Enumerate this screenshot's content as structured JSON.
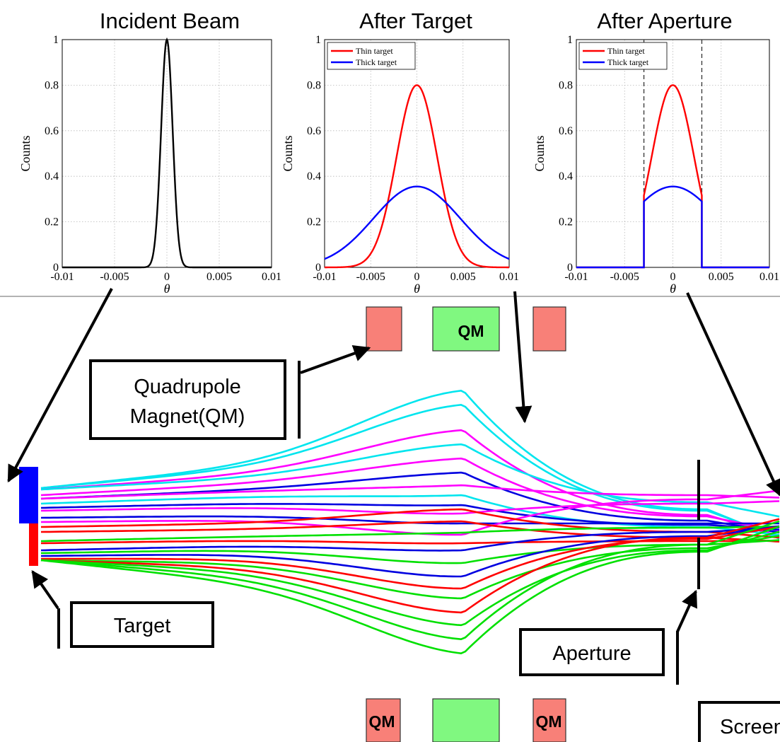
{
  "plots": [
    {
      "id": "incident",
      "title": "Incident Beam",
      "ylabel": "Counts",
      "xlabel": "θ",
      "xticks": [
        "-0.01",
        "-0.005",
        "0",
        "0.005",
        "0.01"
      ],
      "yticks": [
        "0",
        "0.2",
        "0.4",
        "0.6",
        "0.8",
        "1"
      ],
      "legend": [],
      "curves": [
        {
          "color": "#000000",
          "peak": 1.0,
          "sigma": 0.00055,
          "cutoff": null
        }
      ],
      "aperture_lines": []
    },
    {
      "id": "after-target",
      "title": "After Target",
      "ylabel": "Counts",
      "xlabel": "θ",
      "xticks": [
        "-0.01",
        "-0.005",
        "0",
        "0.005",
        "0.01"
      ],
      "yticks": [
        "0",
        "0.2",
        "0.4",
        "0.6",
        "0.8",
        "1"
      ],
      "legend": [
        {
          "label": "Thin target",
          "color": "#ff0000"
        },
        {
          "label": "Thick target",
          "color": "#0000ff"
        }
      ],
      "curves": [
        {
          "color": "#ff0000",
          "peak": 0.8,
          "sigma": 0.0022,
          "cutoff": null
        },
        {
          "color": "#0000ff",
          "peak": 0.355,
          "sigma": 0.0047,
          "cutoff": null
        }
      ],
      "aperture_lines": []
    },
    {
      "id": "after-aperture",
      "title": "After Aperture",
      "ylabel": "Counts",
      "xlabel": "θ",
      "xticks": [
        "-0.01",
        "-0.005",
        "0",
        "0.005",
        "0.01"
      ],
      "yticks": [
        "0",
        "0.2",
        "0.4",
        "0.6",
        "0.8",
        "1"
      ],
      "legend": [
        {
          "label": "Thin target",
          "color": "#ff0000"
        },
        {
          "label": "Thick target",
          "color": "#0000ff"
        }
      ],
      "curves": [
        {
          "color": "#ff0000",
          "peak": 0.8,
          "sigma": 0.0022,
          "cutoff": 0.003
        },
        {
          "color": "#0000ff",
          "peak": 0.355,
          "sigma": 0.0047,
          "cutoff": 0.003
        }
      ],
      "aperture_lines": [
        -0.003,
        0.003
      ]
    }
  ],
  "labels": {
    "quadrupole_line1": "Quadrupole",
    "quadrupole_line2": "Magnet(QM)",
    "target": "Target",
    "aperture": "Aperture",
    "screen": "Screen",
    "qm_top": "QM",
    "qm_bottom_left": "QM",
    "qm_bottom_right": "QM"
  },
  "colors": {
    "magnet_red": "#f88078",
    "magnet_green": "#80f880",
    "beam_cyan": "#00e5ee",
    "beam_magenta": "#ff00ff",
    "beam_blue": "#0000e0",
    "beam_red": "#ff0000",
    "beam_green": "#00e000"
  }
}
